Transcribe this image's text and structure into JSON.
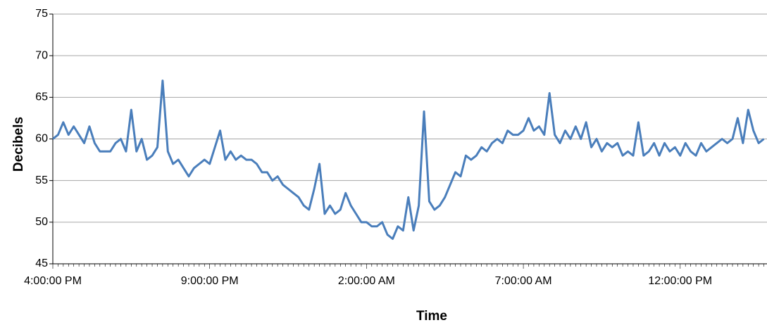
{
  "chart_data": {
    "type": "line",
    "x_label": "Time",
    "y_label": "Decibels",
    "categories": [
      "4:00:00 PM",
      null,
      null,
      null,
      null,
      null,
      null,
      null,
      null,
      null,
      null,
      null,
      null,
      null,
      null,
      null,
      null,
      null,
      null,
      null,
      null,
      null,
      null,
      null,
      null,
      null,
      null,
      null,
      null,
      null,
      "9:00:00 PM",
      null,
      null,
      null,
      null,
      null,
      null,
      null,
      null,
      null,
      null,
      null,
      null,
      null,
      null,
      null,
      null,
      null,
      null,
      null,
      null,
      null,
      null,
      null,
      null,
      null,
      null,
      null,
      null,
      null,
      "2:00:00 AM",
      null,
      null,
      null,
      null,
      null,
      null,
      null,
      null,
      null,
      null,
      null,
      null,
      null,
      null,
      null,
      null,
      null,
      null,
      null,
      null,
      null,
      null,
      null,
      null,
      null,
      null,
      null,
      null,
      null,
      "7:00:00 AM",
      null,
      null,
      null,
      null,
      null,
      null,
      null,
      null,
      null,
      null,
      null,
      null,
      null,
      null,
      null,
      null,
      null,
      null,
      null,
      null,
      null,
      null,
      null,
      null,
      null,
      null,
      null,
      null,
      null,
      "12:00:00 PM",
      null,
      null,
      null,
      null,
      null,
      null,
      null,
      null,
      null,
      null,
      null,
      null,
      null,
      null,
      null,
      null
    ],
    "series": [
      {
        "name": "Decibels",
        "color": "#4a7ebb",
        "values": [
          60,
          60.5,
          62,
          60.5,
          61.5,
          60.5,
          59.5,
          61.5,
          59.5,
          58.5,
          58.5,
          58.5,
          59.5,
          60,
          58.5,
          63.5,
          58.5,
          60,
          57.5,
          58,
          59,
          67,
          58.5,
          57,
          57.5,
          56.5,
          55.5,
          56.5,
          57,
          57.5,
          57,
          59,
          61,
          57.5,
          58.5,
          57.5,
          58,
          57.5,
          57.5,
          57,
          56,
          56,
          55,
          55.5,
          54.5,
          54,
          53.5,
          53,
          52,
          51.5,
          54,
          57,
          51,
          52,
          51,
          51.5,
          53.5,
          52,
          51,
          50,
          50,
          49.5,
          49.5,
          50,
          48.5,
          48,
          49.5,
          49,
          53,
          49,
          52,
          63.3,
          52.5,
          51.5,
          52,
          53,
          54.5,
          56,
          55.5,
          58,
          57.5,
          58,
          59,
          58.5,
          59.5,
          60,
          59.5,
          61,
          60.5,
          60.5,
          61,
          62.5,
          61,
          61.5,
          60.5,
          65.5,
          60.5,
          59.5,
          61,
          60,
          61.5,
          60,
          62,
          59,
          60,
          58.5,
          59.5,
          59,
          59.5,
          58,
          58.5,
          58,
          62,
          58,
          58.5,
          59.5,
          58,
          59.5,
          58.5,
          59,
          58,
          59.5,
          58.5,
          58,
          59.5,
          58.5,
          59,
          59.5,
          60,
          59.5,
          60,
          62.5,
          59.5,
          63.5,
          61,
          59.5,
          60
        ]
      }
    ],
    "ylim": [
      45,
      75
    ],
    "yticks": [
      45,
      50,
      55,
      60,
      65,
      70,
      75
    ],
    "grid": true,
    "legend": false
  }
}
